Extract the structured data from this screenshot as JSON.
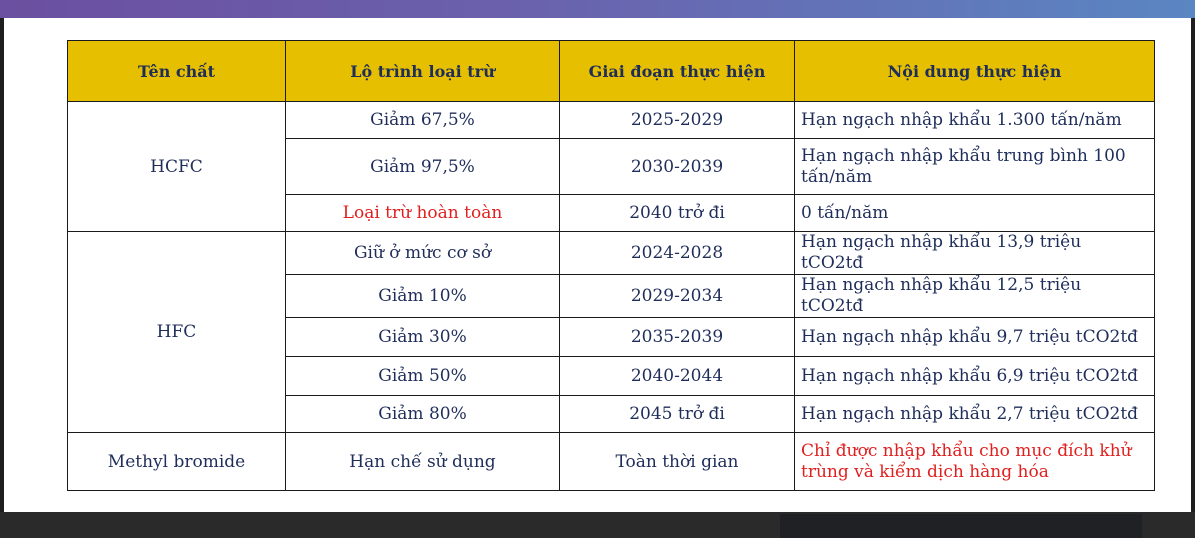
{
  "table": {
    "headers": [
      "Tên chất",
      "Lộ trình loại trừ",
      "Giai đoạn thực hiện",
      "Nội dung thực hiện"
    ],
    "groups": [
      {
        "substance": "HCFC",
        "rows": [
          {
            "roadmap": "Giảm 67,5%",
            "period": "2025-2029",
            "content": "Hạn ngạch nhập khẩu 1.300 tấn/năm"
          },
          {
            "roadmap": "Giảm 97,5%",
            "period": "2030-2039",
            "content": "Hạn ngạch nhập khẩu trung bình 100 tấn/năm"
          },
          {
            "roadmap": "Loại trừ hoàn toàn",
            "period": "2040 trở đi",
            "content": "0 tấn/năm"
          }
        ]
      },
      {
        "substance": "HFC",
        "rows": [
          {
            "roadmap": "Giữ ở mức cơ sở",
            "period": "2024-2028",
            "content": "Hạn ngạch nhập khẩu 13,9 triệu tCO2tđ"
          },
          {
            "roadmap": "Giảm 10%",
            "period": "2029-2034",
            "content": "Hạn ngạch nhập khẩu 12,5 triệu tCO2tđ"
          },
          {
            "roadmap": "Giảm 30%",
            "period": "2035-2039",
            "content": "Hạn ngạch nhập khẩu 9,7 triệu tCO2tđ"
          },
          {
            "roadmap": "Giảm 50%",
            "period": "2040-2044",
            "content": "Hạn ngạch nhập khẩu 6,9 triệu tCO2tđ"
          },
          {
            "roadmap": "Giảm 80%",
            "period": "2045 trở đi",
            "content": "Hạn ngạch nhập khẩu 2,7 triệu tCO2tđ"
          }
        ]
      },
      {
        "substance": "Methyl bromide",
        "rows": [
          {
            "roadmap": "Hạn chế sử dụng",
            "period": "Toàn thời gian",
            "content": "Chỉ được nhập khẩu cho mục đích khử trùng và kiểm dịch hàng hóa"
          }
        ]
      }
    ]
  },
  "colors": {
    "header_bg": "#e6c000",
    "text": "#1f2d5a",
    "highlight": "#e0201f"
  }
}
